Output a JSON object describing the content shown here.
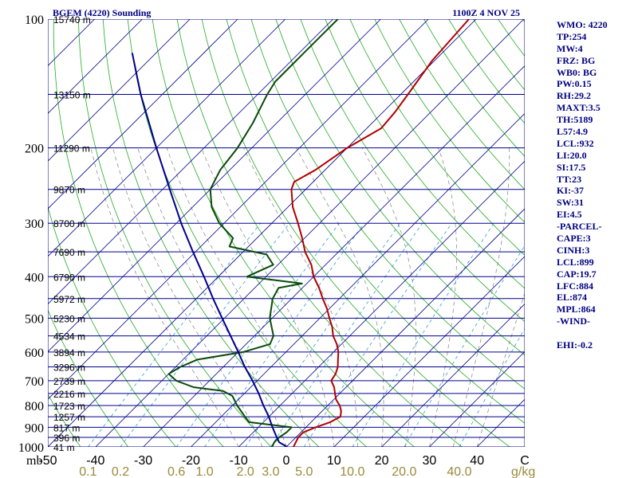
{
  "chart_data": {
    "type": "line",
    "title": "BGEM (4220) Sounding",
    "time_label": "1100Z  4 NOV 25",
    "ylabel": "mb",
    "xunit": "g/kg",
    "ylim": [
      1000,
      100
    ],
    "xlim": [
      -50,
      50
    ],
    "pressure_ticks": [
      {
        "p": 100,
        "label": "100"
      },
      {
        "p": 200,
        "label": "200"
      },
      {
        "p": 300,
        "label": "300"
      },
      {
        "p": 400,
        "label": "400"
      },
      {
        "p": 500,
        "label": "500"
      },
      {
        "p": 600,
        "label": "600"
      },
      {
        "p": 700,
        "label": "700"
      },
      {
        "p": 800,
        "label": "800"
      },
      {
        "p": 900,
        "label": "900"
      },
      {
        "p": 1000,
        "label": "1000"
      }
    ],
    "height_levels": [
      {
        "p": 100,
        "label": "15740 m"
      },
      {
        "p": 150,
        "label": "13150 m"
      },
      {
        "p": 200,
        "label": "11290 m"
      },
      {
        "p": 250,
        "label": "9870 m"
      },
      {
        "p": 300,
        "label": "8700 m"
      },
      {
        "p": 350,
        "label": "7690 m"
      },
      {
        "p": 400,
        "label": "6790 m"
      },
      {
        "p": 450,
        "label": "5972 m"
      },
      {
        "p": 500,
        "label": "5230 m"
      },
      {
        "p": 550,
        "label": "4534 m"
      },
      {
        "p": 600,
        "label": "3894 m"
      },
      {
        "p": 650,
        "label": "3296 m"
      },
      {
        "p": 700,
        "label": "2739 m"
      },
      {
        "p": 750,
        "label": "2216 m"
      },
      {
        "p": 800,
        "label": "1723 m"
      },
      {
        "p": 850,
        "label": "1257 m"
      },
      {
        "p": 900,
        "label": "817 m"
      },
      {
        "p": 950,
        "label": "396 m"
      },
      {
        "p": 1000,
        "label": "41 m"
      }
    ],
    "temperature_ticks": [
      {
        "t": -50,
        "label": "-50"
      },
      {
        "t": -40,
        "label": "-40"
      },
      {
        "t": -30,
        "label": "-30"
      },
      {
        "t": -20,
        "label": "-20"
      },
      {
        "t": -10,
        "label": "-10"
      },
      {
        "t": 0,
        "label": "0"
      },
      {
        "t": 10,
        "label": "10"
      },
      {
        "t": 20,
        "label": "20"
      },
      {
        "t": 30,
        "label": "30"
      },
      {
        "t": 40,
        "label": "40"
      },
      {
        "t": 50,
        "label": "C"
      }
    ],
    "mixing_ratio_ticks": [
      {
        "w": 0.1,
        "label": "0.1"
      },
      {
        "w": 0.2,
        "label": "0.2"
      },
      {
        "w": 0.6,
        "label": "0.6"
      },
      {
        "w": 1.0,
        "label": "1.0"
      },
      {
        "w": 2.0,
        "label": "2.0"
      },
      {
        "w": 3.0,
        "label": "3.0"
      },
      {
        "w": 5.0,
        "label": "5.0"
      },
      {
        "w": 10.0,
        "label": "10.0"
      },
      {
        "w": 20.0,
        "label": "20.0"
      },
      {
        "w": 40.0,
        "label": "40.0"
      }
    ],
    "series": [
      {
        "name": "Temperature",
        "color": "#b00000",
        "points": [
          {
            "p": 1000,
            "t": 1.5
          },
          {
            "p": 975,
            "t": 1.0
          },
          {
            "p": 950,
            "t": 0.5
          },
          {
            "p": 925,
            "t": 0.5
          },
          {
            "p": 900,
            "t": 2.0
          },
          {
            "p": 875,
            "t": 4.0
          },
          {
            "p": 850,
            "t": 5.0
          },
          {
            "p": 825,
            "t": 4.0
          },
          {
            "p": 800,
            "t": 2.5
          },
          {
            "p": 775,
            "t": 0.5
          },
          {
            "p": 750,
            "t": -1.0
          },
          {
            "p": 725,
            "t": -2.5
          },
          {
            "p": 700,
            "t": -4.5
          },
          {
            "p": 675,
            "t": -5.0
          },
          {
            "p": 650,
            "t": -6.0
          },
          {
            "p": 625,
            "t": -7.5
          },
          {
            "p": 600,
            "t": -9.0
          },
          {
            "p": 575,
            "t": -11.0
          },
          {
            "p": 550,
            "t": -13.5
          },
          {
            "p": 525,
            "t": -15.5
          },
          {
            "p": 500,
            "t": -18.0
          },
          {
            "p": 475,
            "t": -20.5
          },
          {
            "p": 450,
            "t": -23.5
          },
          {
            "p": 425,
            "t": -26.5
          },
          {
            "p": 400,
            "t": -30.0
          },
          {
            "p": 375,
            "t": -33.0
          },
          {
            "p": 350,
            "t": -37.0
          },
          {
            "p": 325,
            "t": -40.5
          },
          {
            "p": 300,
            "t": -44.5
          },
          {
            "p": 275,
            "t": -49.0
          },
          {
            "p": 250,
            "t": -53.0
          },
          {
            "p": 240,
            "t": -54.0
          },
          {
            "p": 225,
            "t": -52.0
          },
          {
            "p": 200,
            "t": -50.0
          },
          {
            "p": 180,
            "t": -47.0
          },
          {
            "p": 165,
            "t": -47.5
          },
          {
            "p": 150,
            "t": -48.5
          },
          {
            "p": 125,
            "t": -50.5
          },
          {
            "p": 100,
            "t": -51.5
          }
        ]
      },
      {
        "name": "Dewpoint",
        "color": "#0a4a0a",
        "points": [
          {
            "p": 1000,
            "t": -3.0
          },
          {
            "p": 975,
            "t": -3.5
          },
          {
            "p": 950,
            "t": -3.5
          },
          {
            "p": 925,
            "t": -3.0
          },
          {
            "p": 900,
            "t": -3.0
          },
          {
            "p": 875,
            "t": -13.0
          },
          {
            "p": 850,
            "t": -15.0
          },
          {
            "p": 800,
            "t": -19.0
          },
          {
            "p": 760,
            "t": -22.0
          },
          {
            "p": 740,
            "t": -25.0
          },
          {
            "p": 725,
            "t": -32.0
          },
          {
            "p": 700,
            "t": -37.0
          },
          {
            "p": 675,
            "t": -40.0
          },
          {
            "p": 650,
            "t": -39.0
          },
          {
            "p": 625,
            "t": -37.0
          },
          {
            "p": 600,
            "t": -29.0
          },
          {
            "p": 575,
            "t": -25.0
          },
          {
            "p": 550,
            "t": -26.0
          },
          {
            "p": 500,
            "t": -30.5
          },
          {
            "p": 450,
            "t": -34.0
          },
          {
            "p": 425,
            "t": -35.0
          },
          {
            "p": 415,
            "t": -31.0
          },
          {
            "p": 400,
            "t": -44.0
          },
          {
            "p": 375,
            "t": -41.0
          },
          {
            "p": 355,
            "t": -44.5
          },
          {
            "p": 340,
            "t": -54.0
          },
          {
            "p": 325,
            "t": -55.0
          },
          {
            "p": 300,
            "t": -61.0
          },
          {
            "p": 275,
            "t": -66.0
          },
          {
            "p": 250,
            "t": -70.0
          },
          {
            "p": 225,
            "t": -72.0
          },
          {
            "p": 200,
            "t": -73.0
          },
          {
            "p": 175,
            "t": -75.0
          },
          {
            "p": 150,
            "t": -78.0
          },
          {
            "p": 140,
            "t": -79.0
          },
          {
            "p": 125,
            "t": -79.0
          },
          {
            "p": 100,
            "t": -79.0
          }
        ]
      },
      {
        "name": "Parcel path",
        "color": "#00008b",
        "points": [
          {
            "p": 1000,
            "t": 0.2
          },
          {
            "p": 975,
            "t": -2.5
          },
          {
            "p": 950,
            "t": -4.0
          },
          {
            "p": 900,
            "t": -7.0
          },
          {
            "p": 850,
            "t": -10.0
          },
          {
            "p": 800,
            "t": -13.5
          },
          {
            "p": 750,
            "t": -17.0
          },
          {
            "p": 700,
            "t": -21.0
          },
          {
            "p": 650,
            "t": -25.5
          },
          {
            "p": 600,
            "t": -30.0
          },
          {
            "p": 550,
            "t": -35.0
          },
          {
            "p": 500,
            "t": -40.5
          },
          {
            "p": 450,
            "t": -46.5
          },
          {
            "p": 400,
            "t": -53.0
          },
          {
            "p": 350,
            "t": -60.5
          },
          {
            "p": 300,
            "t": -69.0
          },
          {
            "p": 250,
            "t": -78.5
          },
          {
            "p": 200,
            "t": -90.0
          },
          {
            "p": 150,
            "t": -104.5
          },
          {
            "p": 120,
            "t": -115.0
          }
        ]
      }
    ]
  },
  "indices": [
    "WMO: 4220",
    "TP:254",
    "MW:4",
    "FRZ: BG",
    "WB0: BG",
    "PW:0.15",
    "RH:29.2",
    "MAXT:3.5",
    "TH:5189",
    "L57:4.9",
    "LCL:932",
    "LI:20.0",
    "SI:17.5",
    "TT:23",
    "KI:-37",
    "SW:31",
    "EI:4.5",
    "-PARCEL-",
    "CAPE:3",
    "CINH:3",
    "LCL:899",
    "CAP:19.7",
    "LFC:884",
    "EL:874",
    "MPL:864",
    "-WIND-",
    "",
    "EHI:-0.2"
  ],
  "colors": {
    "isobar": "#00008b",
    "isotherm": "#00008b",
    "dry_adiabat": "#22aa22",
    "moist_adiabat": "#808080",
    "mixing_ratio": "#3399cc",
    "text": "#000080"
  }
}
